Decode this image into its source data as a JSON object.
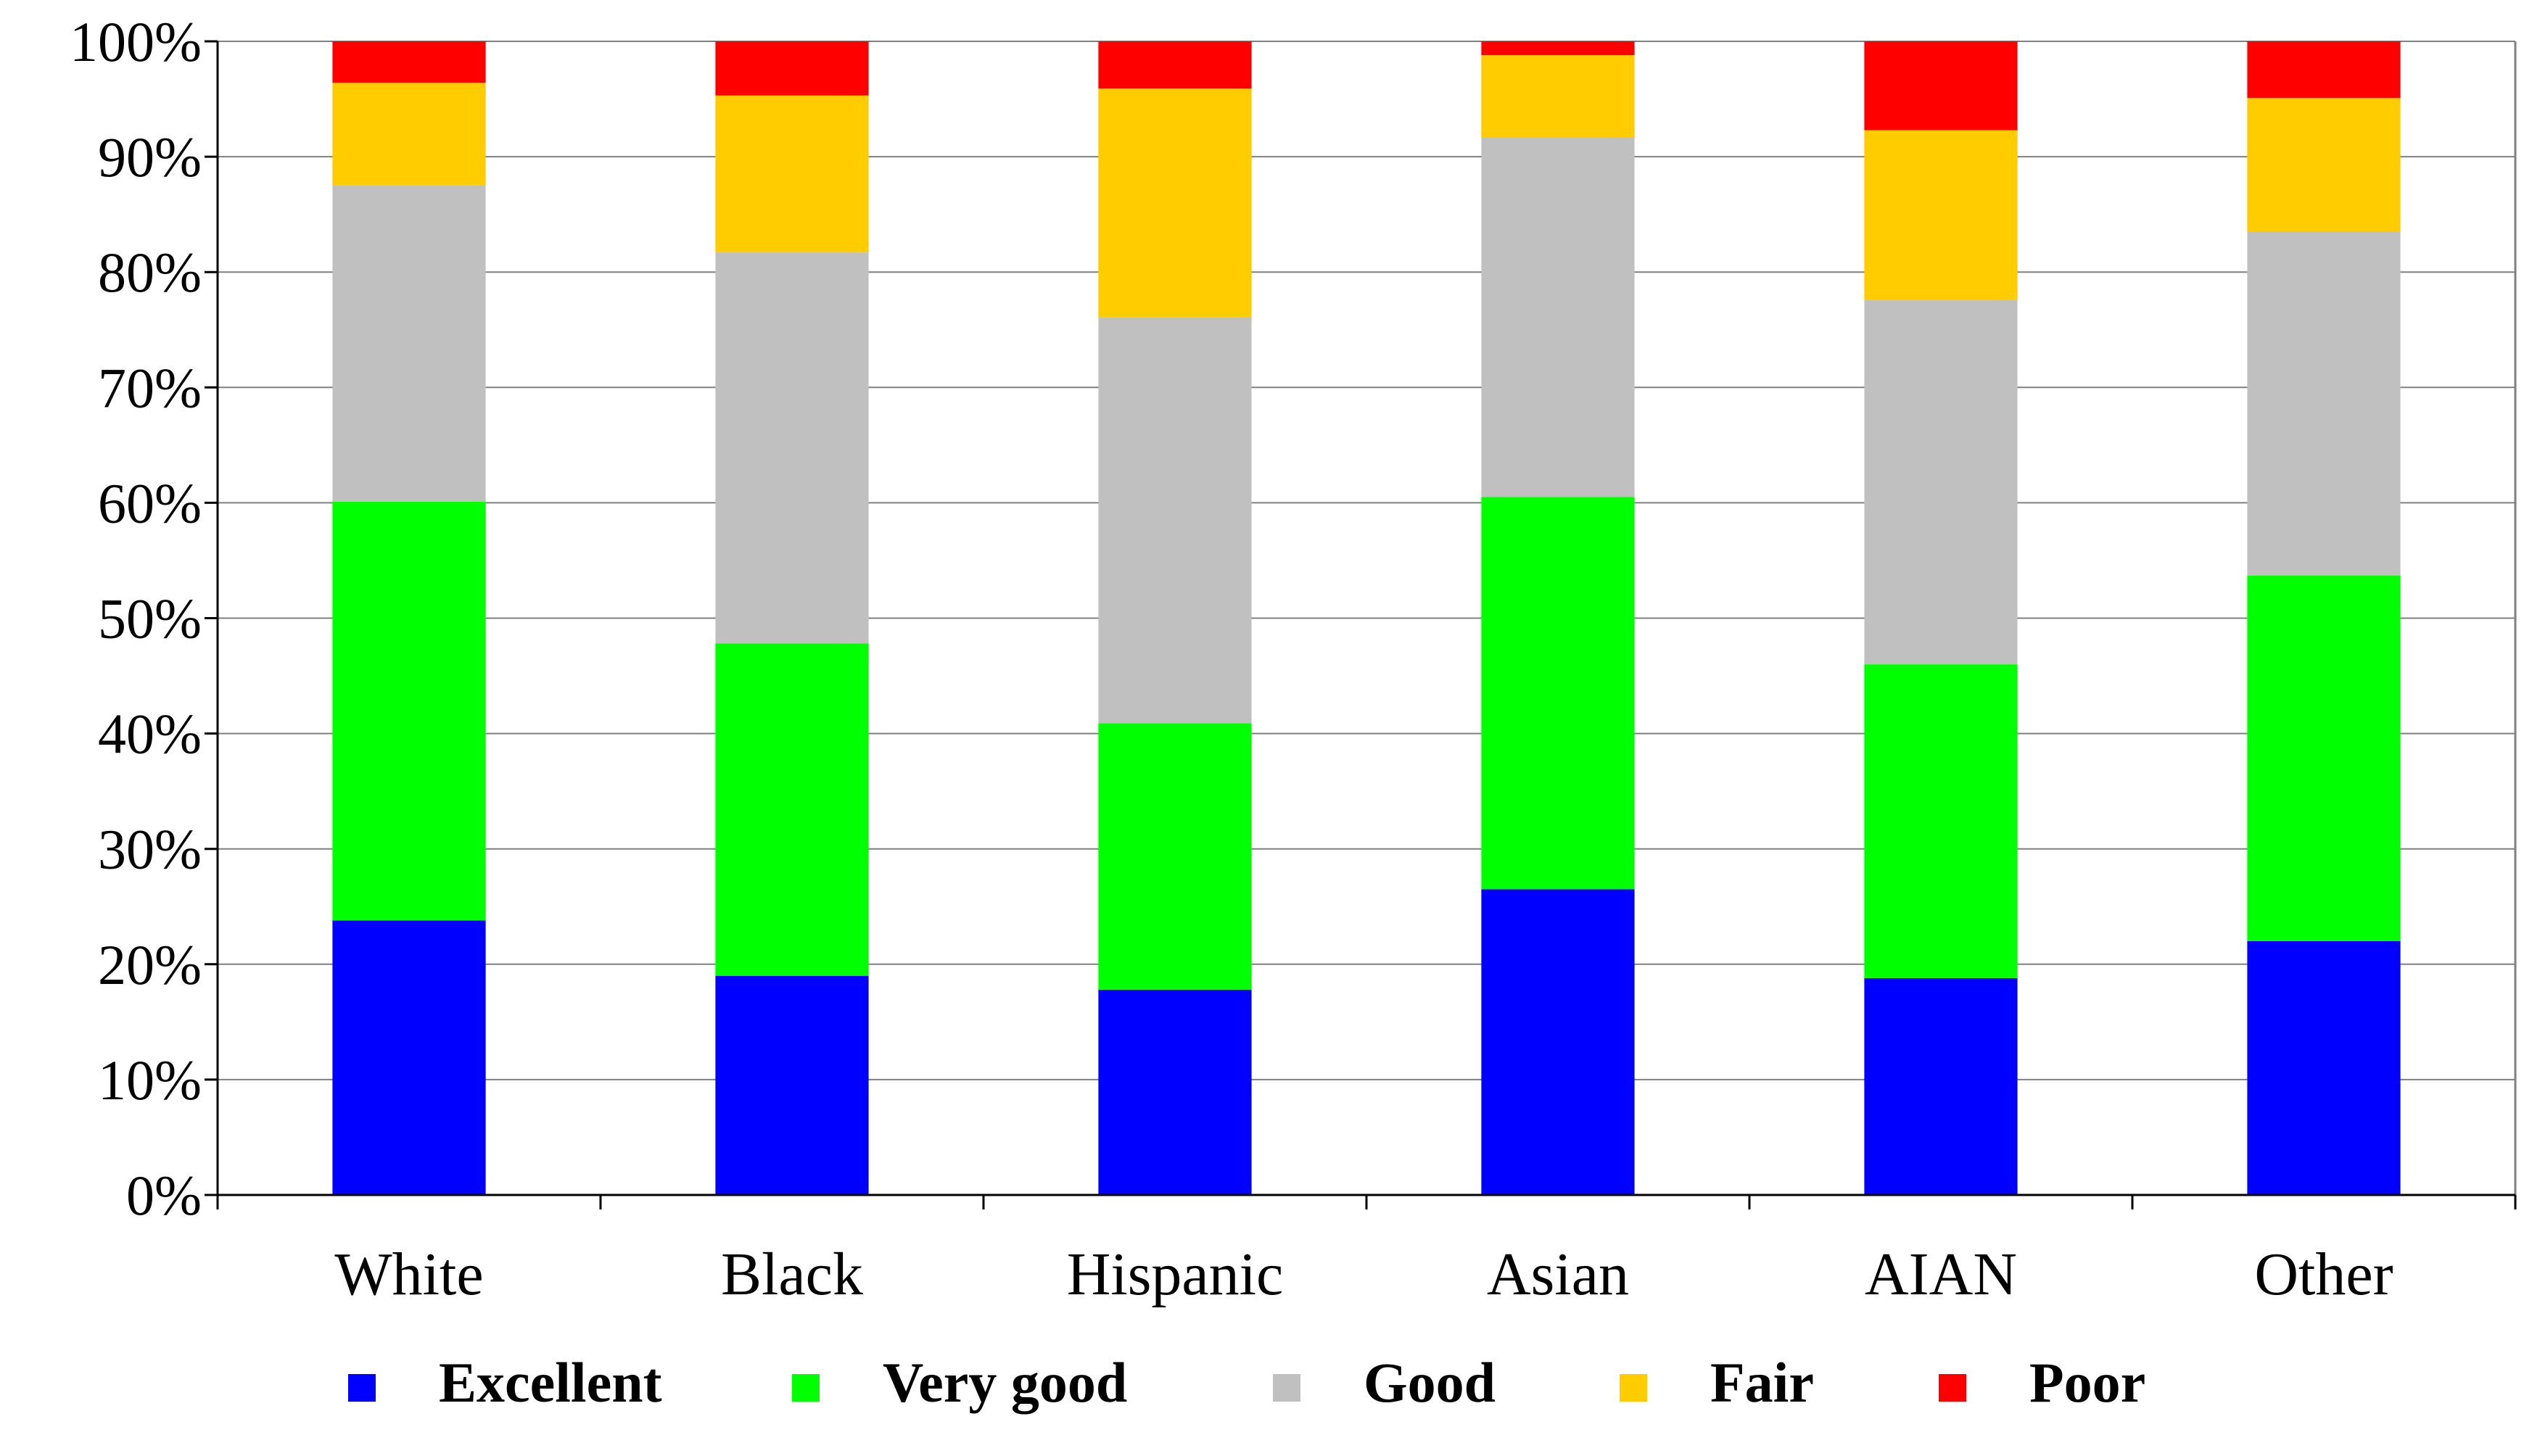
{
  "chart_data": {
    "type": "bar",
    "stacked": true,
    "percent": true,
    "title": "",
    "xlabel": "",
    "ylabel": "",
    "ylim": [
      0,
      100
    ],
    "yticks": [
      "0%",
      "10%",
      "20%",
      "30%",
      "40%",
      "50%",
      "60%",
      "70%",
      "80%",
      "90%",
      "100%"
    ],
    "grid": true,
    "legend_position": "bottom",
    "categories": [
      "White",
      "Black",
      "Hispanic",
      "Asian",
      "AIAN",
      "Other"
    ],
    "series": [
      {
        "name": "Excellent",
        "color": "#0000FF",
        "values": [
          23.8,
          19.0,
          17.8,
          26.5,
          18.8,
          22.0
        ]
      },
      {
        "name": "Very good",
        "color": "#00FF00",
        "values": [
          36.3,
          28.8,
          23.1,
          34.0,
          27.2,
          31.7
        ]
      },
      {
        "name": "Good",
        "color": "#C0C0C0",
        "values": [
          27.4,
          33.9,
          35.2,
          31.2,
          31.6,
          29.8
        ]
      },
      {
        "name": "Fair",
        "color": "#FFCC00",
        "values": [
          8.9,
          13.6,
          19.8,
          7.1,
          14.7,
          11.6
        ]
      },
      {
        "name": "Poor",
        "color": "#FF0000",
        "values": [
          3.6,
          4.7,
          4.1,
          1.2,
          7.7,
          4.9
        ]
      }
    ]
  }
}
